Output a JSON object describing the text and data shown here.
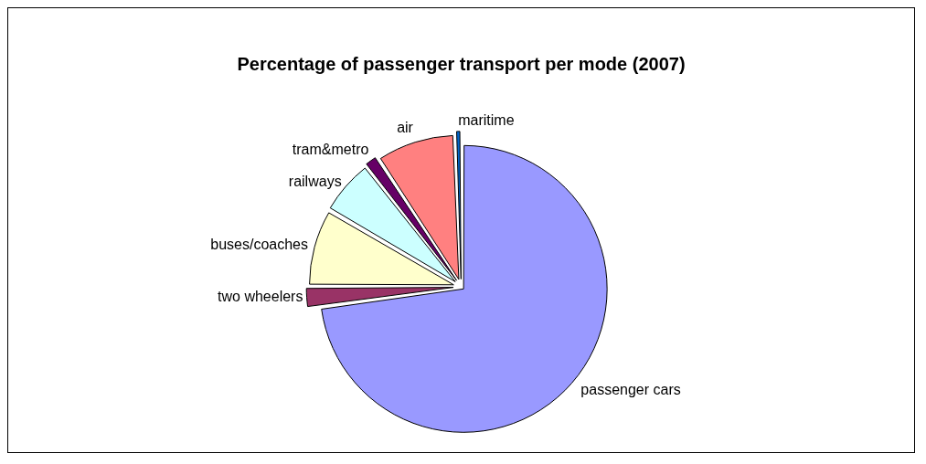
{
  "chart_data": {
    "type": "pie",
    "title": "Percentage of passenger transport per mode (2007)",
    "categories": [
      "passenger cars",
      "two wheelers",
      "buses/coaches",
      "railways",
      "tram&metro",
      "air",
      "maritime"
    ],
    "values": [
      72.8,
      2.2,
      8.4,
      6.0,
      1.4,
      8.6,
      0.6
    ],
    "colors": [
      "#9999ff",
      "#993366",
      "#ffffcc",
      "#ccffff",
      "#660066",
      "#ff8080",
      "#0066cc"
    ],
    "legend": false
  }
}
